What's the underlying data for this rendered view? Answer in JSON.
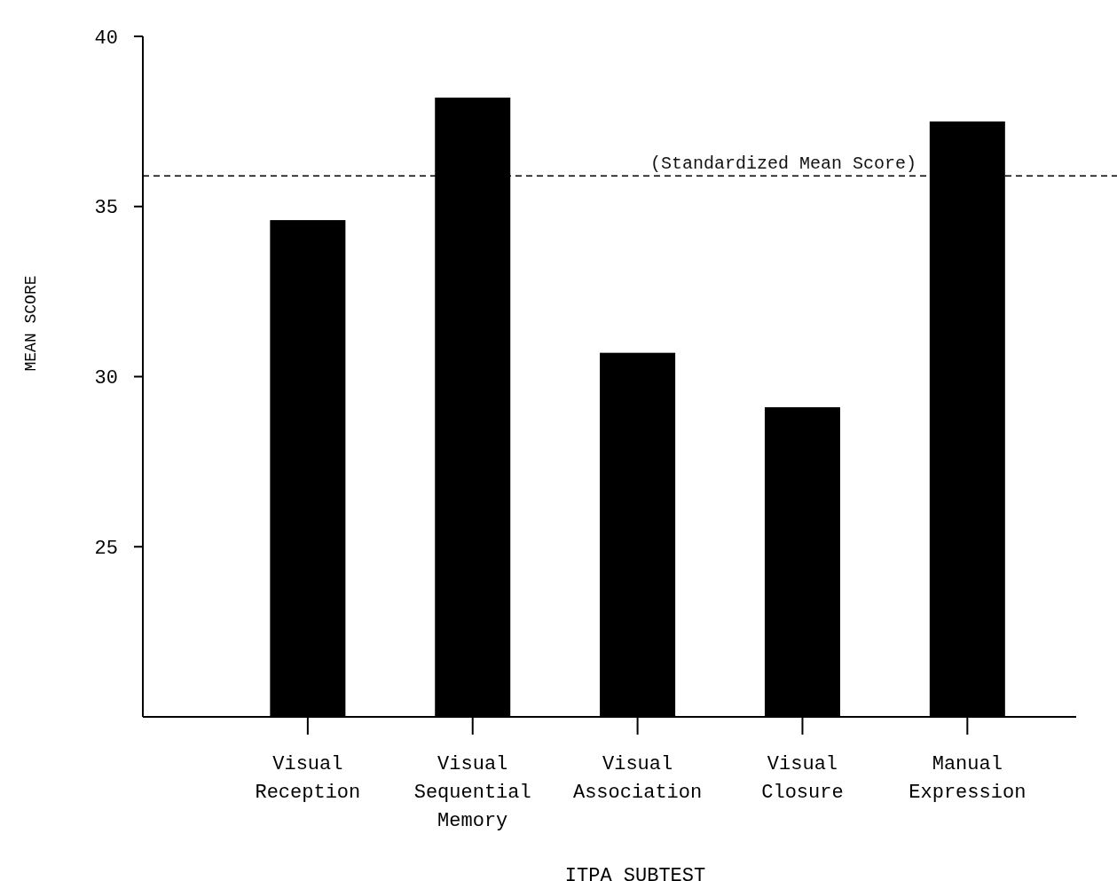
{
  "chart_data": {
    "type": "bar",
    "xlabel": "ITPA SUBTEST",
    "ylabel": "MEAN SCORE",
    "categories": [
      "Visual\nReception",
      "Visual\nSequential\nMemory",
      "Visual\nAssociation",
      "Visual\nClosure",
      "Manual\nExpression"
    ],
    "values": [
      34.6,
      38.2,
      30.7,
      29.1,
      37.5
    ],
    "color": "#000000",
    "ylim": [
      20,
      40
    ],
    "yticks": [
      25,
      30,
      35,
      40
    ],
    "grid": false,
    "ref_lines": [
      {
        "axis": "y",
        "value": 35.9,
        "label": "(Standardized Mean Score)",
        "line_style": "dashed",
        "color": "#000000"
      }
    ]
  }
}
